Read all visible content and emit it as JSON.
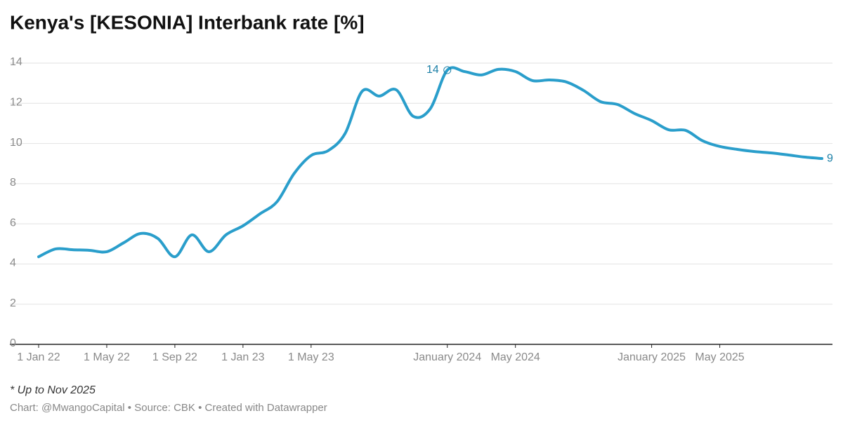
{
  "chart_data": {
    "type": "line",
    "title": "Kenya's [KESONIA] Interbank rate [%]",
    "note": "* Up to Nov 2025",
    "source": "Chart: @MwangoCapital • Source: CBK • Created with Datawrapper",
    "x": [
      "2022-01",
      "2022-02",
      "2022-03",
      "2022-04",
      "2022-05",
      "2022-06",
      "2022-07",
      "2022-08",
      "2022-09",
      "2022-10",
      "2022-11",
      "2022-12",
      "2023-01",
      "2023-02",
      "2023-03",
      "2023-04",
      "2023-05",
      "2023-06",
      "2023-07",
      "2023-08",
      "2023-09",
      "2023-10",
      "2023-11",
      "2023-12",
      "2024-01",
      "2024-02",
      "2024-03",
      "2024-04",
      "2024-05",
      "2024-06",
      "2024-07",
      "2024-08",
      "2024-09",
      "2024-10",
      "2024-11",
      "2024-12",
      "2025-01",
      "2025-02",
      "2025-03",
      "2025-04",
      "2025-05",
      "2025-06",
      "2025-07",
      "2025-08",
      "2025-09",
      "2025-10",
      "2025-11"
    ],
    "series": [
      {
        "name": "KESONIA",
        "color": "#2a9ecb",
        "values": [
          4.36,
          4.75,
          4.71,
          4.68,
          4.61,
          5.06,
          5.52,
          5.27,
          4.36,
          5.45,
          4.61,
          5.45,
          5.9,
          6.5,
          7.1,
          8.5,
          9.4,
          9.64,
          10.5,
          12.6,
          12.36,
          12.67,
          11.35,
          11.73,
          13.65,
          13.58,
          13.41,
          13.69,
          13.58,
          13.13,
          13.16,
          13.06,
          12.64,
          12.08,
          11.94,
          11.49,
          11.14,
          10.68,
          10.65,
          10.13,
          9.85,
          9.71,
          9.6,
          9.53,
          9.43,
          9.32,
          9.25
        ],
        "value_labels": [
          null,
          null,
          null,
          null,
          null,
          null,
          null,
          null,
          null,
          null,
          null,
          null,
          null,
          null,
          null,
          null,
          null,
          null,
          null,
          null,
          null,
          null,
          null,
          null,
          "14",
          null,
          null,
          null,
          null,
          null,
          null,
          null,
          null,
          null,
          null,
          null,
          null,
          null,
          null,
          null,
          null,
          null,
          null,
          null,
          null,
          null,
          "9"
        ]
      }
    ],
    "xlim": [
      "2022-01",
      "2025-11"
    ],
    "xticks": [
      {
        "value": "2022-01",
        "label": "1 Jan 22"
      },
      {
        "value": "2022-05",
        "label": "1 May 22"
      },
      {
        "value": "2022-09",
        "label": "1 Sep 22"
      },
      {
        "value": "2023-01",
        "label": "1 Jan 23"
      },
      {
        "value": "2023-05",
        "label": "1 May 23"
      },
      {
        "value": "2024-01",
        "label": "January 2024"
      },
      {
        "value": "2024-05",
        "label": "May 2024"
      },
      {
        "value": "2025-01",
        "label": "January 2025"
      },
      {
        "value": "2025-05",
        "label": "May 2025"
      }
    ],
    "ylim": [
      0,
      14
    ],
    "yticks": [
      0,
      2,
      4,
      6,
      8,
      10,
      12,
      14
    ],
    "grid": true,
    "label_color": "#1b7fa6"
  }
}
